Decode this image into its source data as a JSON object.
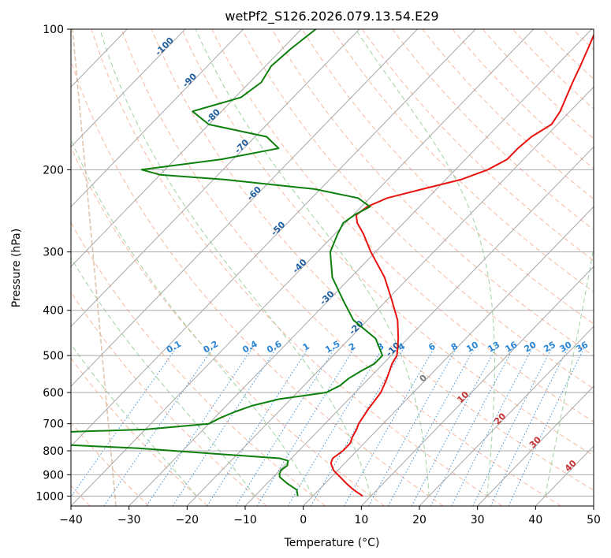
{
  "chart_data": {
    "type": "line",
    "title": "wetPf2_S126.2026.079.13.54.E29",
    "xlabel": "Temperature (°C)",
    "ylabel": "Pressure (hPa)",
    "xlim": [
      -40,
      50
    ],
    "ylim": [
      1050,
      100
    ],
    "y_scale": "log",
    "grid": true,
    "x_ticks": [
      -40,
      -30,
      -20,
      -10,
      0,
      10,
      20,
      30,
      40,
      50
    ],
    "x_tick_labels": [
      "−40",
      "−30",
      "−20",
      "−10",
      "0",
      "10",
      "20",
      "30",
      "40",
      "50"
    ],
    "y_ticks": [
      100,
      200,
      300,
      400,
      500,
      600,
      700,
      800,
      900,
      1000
    ],
    "y_tick_labels": [
      "100",
      "200",
      "300",
      "400",
      "500",
      "600",
      "700",
      "800",
      "900",
      "1000"
    ],
    "series": [
      {
        "role": "temperature",
        "color": "#e8120e",
        "pressure": [
          1000,
          970,
          940,
          910,
          880,
          850,
          830,
          800,
          770,
          750,
          720,
          700,
          650,
          600,
          560,
          520,
          500,
          460,
          420,
          380,
          340,
          300,
          275,
          260,
          250,
          240,
          230,
          220,
          210,
          200,
          190,
          180,
          170,
          160,
          150,
          140,
          130,
          120,
          110,
          100
        ],
        "temp": [
          8.6,
          6.0,
          3.7,
          1.5,
          -0.8,
          -2.4,
          -2.9,
          -2.4,
          -2.4,
          -3.0,
          -3.6,
          -4.2,
          -5.0,
          -5.6,
          -6.9,
          -8.5,
          -9.0,
          -11.6,
          -14.8,
          -19.2,
          -24.2,
          -30.8,
          -35.0,
          -38.0,
          -39.5,
          -39.0,
          -37.0,
          -32.4,
          -27.4,
          -24.4,
          -22.8,
          -22.8,
          -22.4,
          -21.0,
          -21.7,
          -23.0,
          -24.4,
          -25.8,
          -27.4,
          -29.2
        ]
      },
      {
        "role": "dewpoint",
        "color": "#0d7f0d",
        "pressure": [
          1000,
          970,
          940,
          910,
          895,
          880,
          860,
          840,
          830,
          810,
          790,
          770,
          750,
          730,
          720,
          700,
          680,
          660,
          640,
          620,
          600,
          580,
          560,
          540,
          520,
          500,
          460,
          420,
          380,
          340,
          300,
          275,
          260,
          250,
          240,
          230,
          220,
          210,
          205,
          200,
          190,
          180,
          170,
          160,
          150,
          140,
          130,
          120,
          110,
          100
        ],
        "temp": [
          -2.6,
          -3.8,
          -6.5,
          -8.9,
          -9.5,
          -9.8,
          -9.5,
          -10.2,
          -12.0,
          -25.0,
          -38.0,
          -58.0,
          -75.0,
          -55.0,
          -40.0,
          -30.0,
          -29.0,
          -27.5,
          -25.5,
          -22.0,
          -15.0,
          -13.8,
          -13.5,
          -12.6,
          -11.5,
          -11.5,
          -15.5,
          -22.4,
          -27.6,
          -33.2,
          -37.8,
          -39.5,
          -40.4,
          -39.8,
          -38.5,
          -42.0,
          -51.0,
          -68.0,
          -80.0,
          -84.0,
          -72.0,
          -64.0,
          -68.0,
          -80.0,
          -85.0,
          -79.0,
          -78.0,
          -79.0,
          -78.5,
          -77.5
        ]
      }
    ],
    "isotherms_deg": [
      -140,
      -130,
      -120,
      -110,
      -100,
      -90,
      -80,
      -70,
      -60,
      -50,
      -40,
      -30,
      -20,
      -10,
      0,
      10,
      20,
      30,
      40,
      50
    ],
    "dry_adiabats_deg": [
      -60,
      -50,
      -40,
      -30,
      -20,
      -10,
      0,
      10,
      20,
      30,
      40,
      50,
      60,
      70,
      80,
      90,
      100,
      110,
      120,
      130,
      140,
      150,
      160,
      170,
      180,
      190,
      200
    ],
    "moist_adiabat_labels": [
      "-100",
      "-90",
      "-80",
      "-70",
      "-60",
      "-50",
      "-40",
      "-30",
      "-20",
      "-10"
    ],
    "moist_adiabat_label_temps": [
      -100,
      -90,
      -80,
      -70,
      -60,
      -50,
      -40,
      -30,
      -20,
      -10
    ],
    "moist_adiabat_label_pressures": [
      110,
      130,
      155,
      180,
      227,
      270,
      325,
      380,
      440,
      490
    ],
    "mixing_ratio_labels": [
      "0.1",
      "0.2",
      "0.4",
      "0.6",
      "1",
      "1.5",
      "2",
      "3",
      "4",
      "6",
      "8",
      "10",
      "13",
      "16",
      "20",
      "25",
      "30",
      "36"
    ],
    "mixing_ratio_values": [
      0.1,
      0.2,
      0.4,
      0.6,
      1,
      1.5,
      2,
      3,
      4,
      6,
      8,
      10,
      13,
      16,
      20,
      25,
      30,
      36
    ],
    "wetbulb_labels": [
      "0",
      "10",
      "20",
      "30",
      "40"
    ],
    "wetbulb_label_temps": [
      0,
      10,
      20,
      30,
      40
    ],
    "wetbulb_label_pressures": [
      565,
      620,
      690,
      775,
      870
    ],
    "colors": {
      "isotherm": "#a8a8a8",
      "dry_adiabat": "#f4a183",
      "moist_adiabat": "#8fc98f",
      "mixing_ratio": "#2a86d4",
      "mixing_label": "#2a86d4",
      "moist_label": "#1f5fa0",
      "wetbulb_label": "#c43030",
      "wetbulb_zero_label": "#777777",
      "isobar": "#a8a8a8",
      "tan_curve": "#d8b89a"
    }
  }
}
